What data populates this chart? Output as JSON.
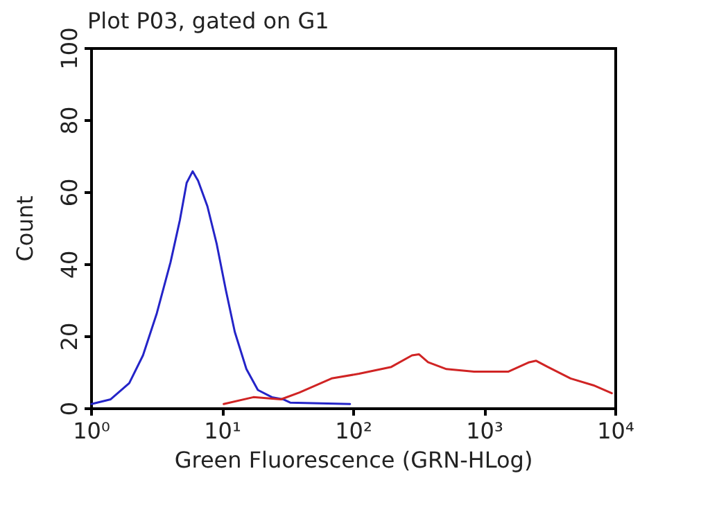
{
  "chart_data": {
    "type": "line",
    "title": "Plot P03, gated on G1",
    "xlabel": "Green Fluorescence (GRN-HLog)",
    "ylabel": "Count",
    "log": "x",
    "xlim": [
      1,
      10000
    ],
    "xticks": [
      {
        "value": 1,
        "label": "10⁰"
      },
      {
        "value": 10,
        "label": "10¹"
      },
      {
        "value": 100,
        "label": "10²"
      },
      {
        "value": 1000,
        "label": "10³"
      },
      {
        "value": 10000,
        "label": "10⁴"
      }
    ],
    "ylim": [
      0,
      100
    ],
    "yticks": [
      0,
      20,
      40,
      60,
      80,
      100
    ],
    "grid": false,
    "marker": "none",
    "line_style": "solid",
    "series": [
      {
        "color": "#2424c8",
        "x": [
          1,
          1.4,
          1.94,
          2.47,
          3.15,
          4.01,
          4.72,
          5.32,
          5.91,
          6.5,
          7.66,
          9.0,
          10.6,
          12.4,
          15.2,
          18.6,
          23.8,
          29.0,
          32.8,
          93.9
        ],
        "values": [
          1.3,
          2.6,
          7.1,
          14.8,
          26.5,
          40.7,
          52.3,
          62.7,
          65.9,
          63.3,
          56.2,
          45.9,
          32.9,
          21.3,
          11.0,
          5.2,
          3.2,
          2.6,
          1.7,
          1.3
        ]
      },
      {
        "color": "#d02424",
        "x": [
          10.2,
          17.2,
          27.9,
          38.6,
          67.9,
          110,
          194,
          279,
          315,
          370,
          511,
          830,
          1521,
          2188,
          2472,
          3027,
          4529,
          6761,
          9333
        ],
        "values": [
          1.3,
          3.2,
          2.6,
          4.5,
          8.4,
          9.7,
          11.6,
          14.8,
          15.1,
          12.9,
          11.0,
          10.3,
          10.3,
          12.9,
          13.3,
          11.6,
          8.4,
          6.5,
          4.3
        ]
      }
    ]
  }
}
